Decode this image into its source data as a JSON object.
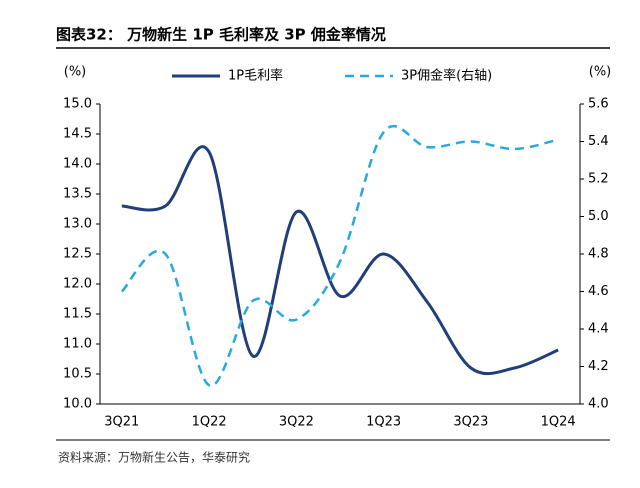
{
  "chart_data": {
    "type": "line",
    "title": "图表32： 万物新生 1P 毛利率及 3P 佣金率情况",
    "y_label": "(%)",
    "y2_label": "(%)",
    "source": "资料来源：万物新生公告，华泰研究",
    "categories": [
      "3Q21",
      null,
      "1Q22",
      null,
      "3Q22",
      null,
      "1Q23",
      null,
      "3Q23",
      null,
      "1Q24"
    ],
    "series": [
      {
        "name": "1P毛利率",
        "color": "#1f3e7a",
        "dashed": false,
        "values": [
          13.3,
          13.3,
          14.2,
          10.8,
          13.2,
          11.8,
          12.5,
          11.7,
          10.6,
          10.6,
          10.9
        ]
      },
      {
        "name": "3P佣金率(右轴)",
        "color": "#29a8e0",
        "dashed": true,
        "axis": "y2",
        "values": [
          4.6,
          4.8,
          4.1,
          4.55,
          4.45,
          4.76,
          5.45,
          5.37,
          5.4,
          5.36,
          5.41
        ]
      }
    ],
    "ylim": [
      10,
      15
    ],
    "yticks": [
      {
        "value": 10,
        "label": "10.0"
      },
      {
        "value": 10.5,
        "label": "10.5"
      },
      {
        "value": 11,
        "label": "11.0"
      },
      {
        "value": 11.5,
        "label": "11.5"
      },
      {
        "value": 12,
        "label": "12.0"
      },
      {
        "value": 12.5,
        "label": "12.5"
      },
      {
        "value": 13,
        "label": "13.0"
      },
      {
        "value": 13.5,
        "label": "13.5"
      },
      {
        "value": 14,
        "label": "14.0"
      },
      {
        "value": 14.5,
        "label": "14.5"
      },
      {
        "value": 15,
        "label": "15.0"
      }
    ],
    "y2lim": [
      4,
      5.6
    ],
    "y2ticks": [
      {
        "value": 4,
        "label": "4.0"
      },
      {
        "value": 4.2,
        "label": "4.2"
      },
      {
        "value": 4.4,
        "label": "4.4"
      },
      {
        "value": 4.6,
        "label": "4.6"
      },
      {
        "value": 4.8,
        "label": "4.8"
      },
      {
        "value": 5,
        "label": "5.0"
      },
      {
        "value": 5.2,
        "label": "5.2"
      },
      {
        "value": 5.4,
        "label": "5.4"
      },
      {
        "value": 5.6,
        "label": "5.6"
      }
    ]
  }
}
